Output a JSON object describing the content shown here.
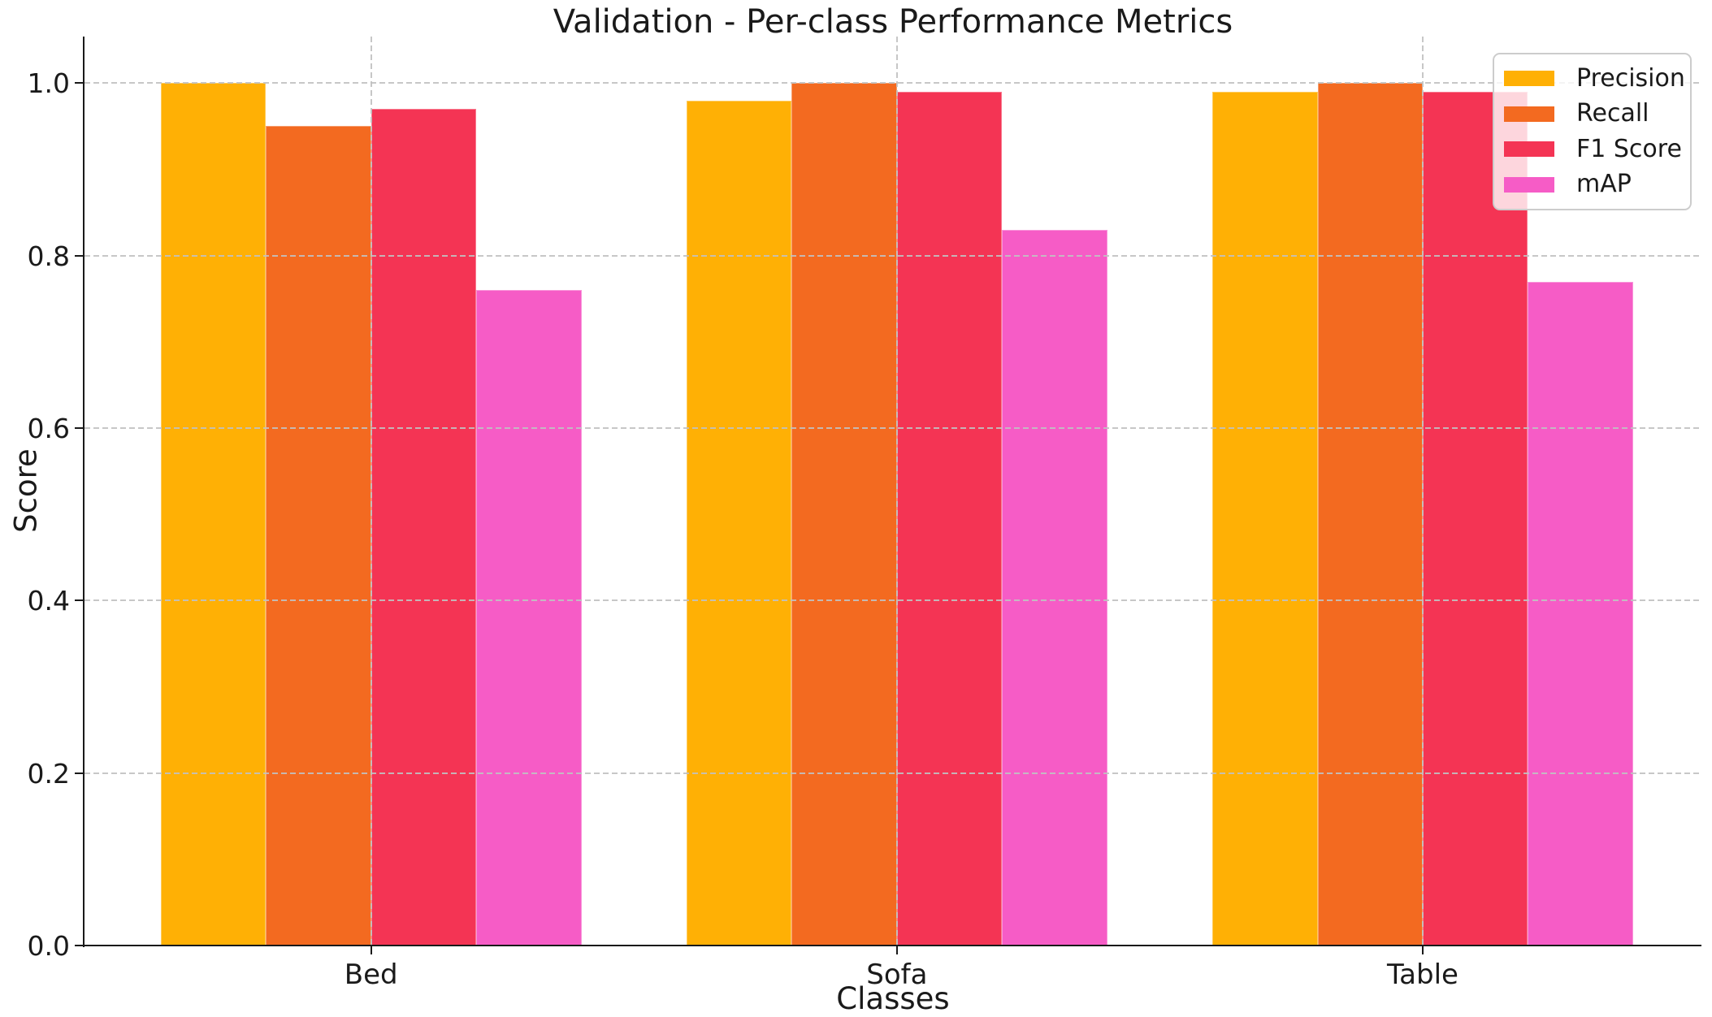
{
  "chart_data": {
    "type": "bar",
    "title": "Validation - Per-class Performance Metrics",
    "xlabel": "Classes",
    "ylabel": "Score",
    "categories": [
      "Bed",
      "Sofa",
      "Table"
    ],
    "series": [
      {
        "name": "Precision",
        "color": "#FFB005",
        "values": [
          1.0,
          0.98,
          0.99
        ]
      },
      {
        "name": "Recall",
        "color": "#F36A20",
        "values": [
          0.95,
          1.0,
          1.0
        ]
      },
      {
        "name": "F1 Score",
        "color": "#F43454",
        "values": [
          0.97,
          0.99,
          0.99
        ]
      },
      {
        "name": "mAP",
        "color": "#F65CC6",
        "values": [
          0.76,
          0.83,
          0.77
        ]
      }
    ],
    "ylim": [
      0,
      1.054
    ],
    "yticks": [
      0.0,
      0.2,
      0.4,
      0.6,
      0.8,
      1.0
    ],
    "ytick_labels": [
      "0.0",
      "0.2",
      "0.4",
      "0.6",
      "0.8",
      "1.0"
    ],
    "grid": "dashed gray horizontal lines at each ytick and vertical lines at each category center, drawn above bars",
    "legend_position": "upper right",
    "background_color": "#ffffff",
    "text_color": "#1a1a1a",
    "grid_color": "#c1c1c1"
  }
}
